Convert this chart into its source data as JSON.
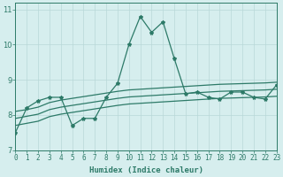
{
  "xlabel": "Humidex (Indice chaleur)",
  "x_values": [
    0,
    1,
    2,
    3,
    4,
    5,
    6,
    7,
    8,
    9,
    10,
    11,
    12,
    13,
    14,
    15,
    16,
    17,
    18,
    19,
    20,
    21,
    22,
    23
  ],
  "line1_y": [
    7.5,
    8.2,
    8.4,
    8.5,
    8.5,
    7.7,
    7.9,
    7.9,
    8.5,
    8.9,
    10.0,
    10.8,
    10.35,
    10.65,
    9.6,
    8.6,
    8.65,
    8.5,
    8.45,
    8.65,
    8.65,
    8.5,
    8.45,
    8.85
  ],
  "line2_y": [
    8.1,
    8.15,
    8.22,
    8.35,
    8.42,
    8.47,
    8.52,
    8.57,
    8.62,
    8.67,
    8.71,
    8.73,
    8.75,
    8.77,
    8.79,
    8.81,
    8.83,
    8.85,
    8.87,
    8.88,
    8.89,
    8.9,
    8.91,
    8.93
  ],
  "line3_y": [
    7.9,
    7.96,
    8.02,
    8.15,
    8.22,
    8.27,
    8.32,
    8.37,
    8.42,
    8.47,
    8.51,
    8.53,
    8.55,
    8.57,
    8.59,
    8.61,
    8.63,
    8.65,
    8.67,
    8.68,
    8.69,
    8.7,
    8.71,
    8.73
  ],
  "line4_y": [
    7.7,
    7.76,
    7.82,
    7.95,
    8.02,
    8.07,
    8.12,
    8.17,
    8.22,
    8.27,
    8.31,
    8.33,
    8.35,
    8.37,
    8.39,
    8.41,
    8.43,
    8.45,
    8.47,
    8.48,
    8.49,
    8.5,
    8.51,
    8.53
  ],
  "line_color": "#2d7a68",
  "bg_color": "#d6eeee",
  "grid_color": "#b8d8d8",
  "ylim": [
    7.0,
    11.2
  ],
  "xlim": [
    0,
    23
  ],
  "yticks": [
    7,
    8,
    9,
    10,
    11
  ],
  "xticks": [
    0,
    1,
    2,
    3,
    4,
    5,
    6,
    7,
    8,
    9,
    10,
    11,
    12,
    13,
    14,
    15,
    16,
    17,
    18,
    19,
    20,
    21,
    22,
    23
  ],
  "tick_fontsize": 5.5,
  "label_fontsize": 6.5
}
